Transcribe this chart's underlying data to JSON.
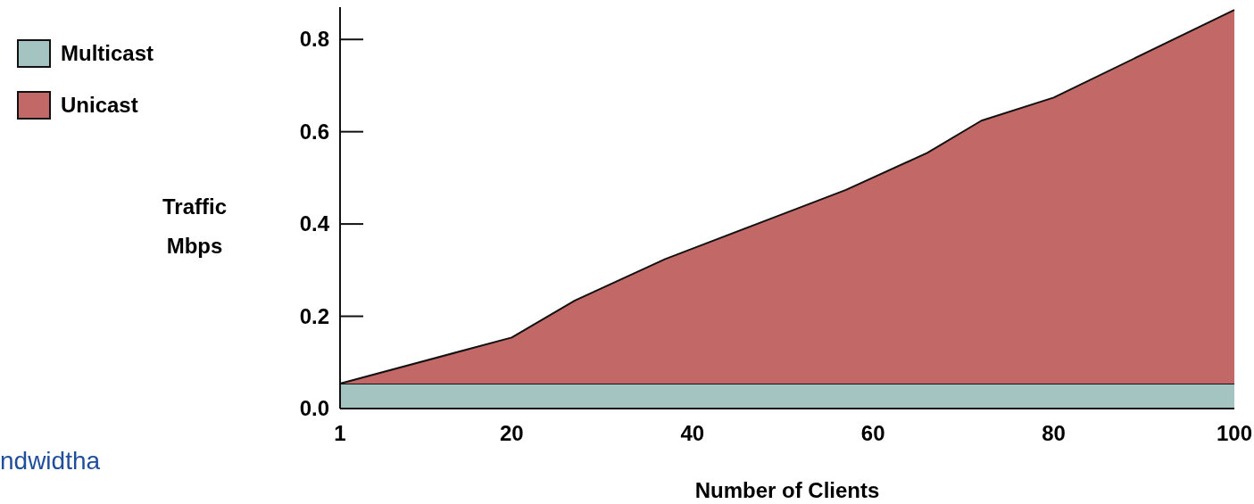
{
  "chart_data": {
    "type": "area",
    "stacked": true,
    "xlabel": "Number of Clients",
    "ylabel": "Traffic\nMbps",
    "x": [
      1,
      20,
      27,
      37,
      49,
      57,
      66,
      72,
      80,
      100
    ],
    "series": [
      {
        "name": "Multicast",
        "color": "#a3c4c1",
        "values": [
          0.054,
          0.054,
          0.054,
          0.054,
          0.054,
          0.054,
          0.054,
          0.054,
          0.054,
          0.054
        ]
      },
      {
        "name": "Unicast",
        "color": "#c26866",
        "values": [
          0,
          0.1,
          0.18,
          0.27,
          0.36,
          0.42,
          0.5,
          0.57,
          0.62,
          0.81
        ]
      }
    ],
    "xlim": [
      1,
      100
    ],
    "xticks": [
      1,
      20,
      40,
      60,
      80,
      100
    ],
    "ylim": [
      0,
      0.87
    ],
    "yticks": [
      {
        "value": 0,
        "label": "0.0"
      },
      {
        "value": 0.2,
        "label": "0.2"
      },
      {
        "value": 0.4,
        "label": "0.4"
      },
      {
        "value": 0.6,
        "label": "0.6"
      },
      {
        "value": 0.8,
        "label": "0.8"
      }
    ],
    "legend": "top left",
    "grid": false,
    "annotations": [
      "ndwidtha"
    ]
  }
}
